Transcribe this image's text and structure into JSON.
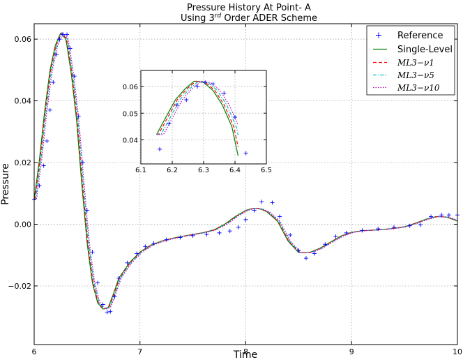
{
  "chart_data": {
    "type": "line",
    "title_line1": "Pressure History At Point- A",
    "title_line2_pre": "Using 3",
    "title_line2_sup": "rd",
    "title_line2_post": " Order ADER Scheme",
    "xlabel": "Time",
    "ylabel": "Pressure",
    "xlim": [
      6,
      10
    ],
    "ylim": [
      -0.039,
      0.065
    ],
    "xticks": [
      6,
      7,
      8,
      9,
      10
    ],
    "xtick_labels": [
      "6",
      "7",
      "8",
      "9",
      "10"
    ],
    "yticks": [
      -0.02,
      0.0,
      0.02,
      0.04,
      0.06
    ],
    "ytick_labels": [
      "−0.02",
      "0.00",
      "0.02",
      "0.04",
      "0.06"
    ],
    "grid": true,
    "legend_position": "top-right",
    "series": [
      {
        "name": "Reference",
        "style": "markers",
        "color": "#0000ff",
        "shift": 0.0
      },
      {
        "name": "Single-Level",
        "style": "solid",
        "color": "#008000",
        "shift": 0.0
      },
      {
        "name": "ML3−ν1",
        "style": "dashed",
        "color": "#ff0000",
        "shift": 0.006
      },
      {
        "name": "ML3−ν5",
        "style": "dashdot",
        "color": "#00bfbf",
        "shift": 0.014
      },
      {
        "name": "ML3−ν10",
        "style": "dotted",
        "color": "#bf00bf",
        "shift": 0.022
      }
    ],
    "curve_keypoints": {
      "x": [
        6.0,
        6.05,
        6.1,
        6.15,
        6.2,
        6.25,
        6.3,
        6.35,
        6.4,
        6.45,
        6.5,
        6.55,
        6.6,
        6.65,
        6.7,
        6.75,
        6.8,
        6.9,
        7.0,
        7.1,
        7.2,
        7.3,
        7.4,
        7.5,
        7.6,
        7.7,
        7.8,
        7.9,
        8.0,
        8.05,
        8.1,
        8.15,
        8.2,
        8.3,
        8.4,
        8.5,
        8.6,
        8.7,
        8.8,
        8.9,
        9.0,
        9.1,
        9.2,
        9.3,
        9.4,
        9.5,
        9.6,
        9.7,
        9.8,
        9.9,
        10.0
      ],
      "y": [
        0.008,
        0.021,
        0.037,
        0.05,
        0.058,
        0.062,
        0.06,
        0.049,
        0.034,
        0.013,
        -0.006,
        -0.019,
        -0.0255,
        -0.0275,
        -0.027,
        -0.0225,
        -0.0175,
        -0.0125,
        -0.009,
        -0.0068,
        -0.0055,
        -0.0046,
        -0.0039,
        -0.0033,
        -0.0027,
        -0.0018,
        0.0,
        0.0025,
        0.0045,
        0.005,
        0.0052,
        0.0048,
        0.004,
        0.001,
        -0.0055,
        -0.0092,
        -0.0092,
        -0.0078,
        -0.0058,
        -0.0038,
        -0.0026,
        -0.0021,
        -0.0019,
        -0.0017,
        -0.0013,
        -0.0008,
        0.0003,
        0.0016,
        0.0025,
        0.0023,
        0.001
      ]
    },
    "reference_points": {
      "x": [
        6.0,
        6.05,
        6.09,
        6.12,
        6.15,
        6.18,
        6.21,
        6.24,
        6.27,
        6.31,
        6.34,
        6.38,
        6.42,
        6.46,
        6.5,
        6.55,
        6.6,
        6.65,
        6.69,
        6.72,
        6.76,
        6.8,
        6.88,
        6.97,
        7.05,
        7.13,
        7.25,
        7.38,
        7.5,
        7.63,
        7.75,
        7.85,
        7.93,
        8.0,
        8.08,
        8.15,
        8.25,
        8.32,
        8.42,
        8.5,
        8.57,
        8.65,
        8.75,
        8.85,
        8.95,
        9.1,
        9.25,
        9.4,
        9.55,
        9.65,
        9.75,
        9.85,
        9.92,
        10.0
      ],
      "y": [
        0.008,
        0.0125,
        0.019,
        0.027,
        0.037,
        0.046,
        0.055,
        0.06,
        0.0615,
        0.0615,
        0.057,
        0.048,
        0.035,
        0.02,
        0.0045,
        -0.009,
        -0.019,
        -0.026,
        -0.0285,
        -0.0283,
        -0.0235,
        -0.0175,
        -0.0125,
        -0.0095,
        -0.0072,
        -0.0062,
        -0.005,
        -0.0043,
        -0.0037,
        -0.0033,
        -0.0028,
        -0.0022,
        -0.001,
        0.0015,
        0.0045,
        0.0073,
        0.007,
        0.0025,
        -0.0035,
        -0.0085,
        -0.011,
        -0.0095,
        -0.0065,
        -0.004,
        -0.0028,
        -0.002,
        -0.0015,
        -0.001,
        -0.0005,
        -0.0002,
        0.0025,
        0.003,
        0.003,
        0.003
      ]
    },
    "inset": {
      "xlim": [
        6.1,
        6.5
      ],
      "ylim": [
        0.031,
        0.066
      ],
      "xticks": [
        6.1,
        6.2,
        6.3,
        6.4,
        6.5
      ],
      "xtick_labels": [
        "6.1",
        "6.2",
        "6.3",
        "6.4",
        "6.5"
      ],
      "yticks": [
        0.04,
        0.05,
        0.06
      ],
      "ytick_labels": [
        "0.04",
        "0.05",
        "0.06"
      ],
      "grid": true,
      "curve_x": [
        6.15,
        6.18,
        6.21,
        6.24,
        6.27,
        6.3,
        6.33,
        6.36,
        6.39,
        6.41
      ],
      "curve_y": [
        0.042,
        0.0485,
        0.055,
        0.059,
        0.062,
        0.0615,
        0.0585,
        0.053,
        0.045,
        0.034
      ],
      "reference_x": [
        6.16,
        6.19,
        6.215,
        6.245,
        6.28,
        6.305,
        6.33,
        6.365,
        6.4,
        6.435
      ],
      "reference_y": [
        0.0365,
        0.046,
        0.053,
        0.055,
        0.06,
        0.0615,
        0.061,
        0.0575,
        0.0485,
        0.035
      ]
    }
  }
}
